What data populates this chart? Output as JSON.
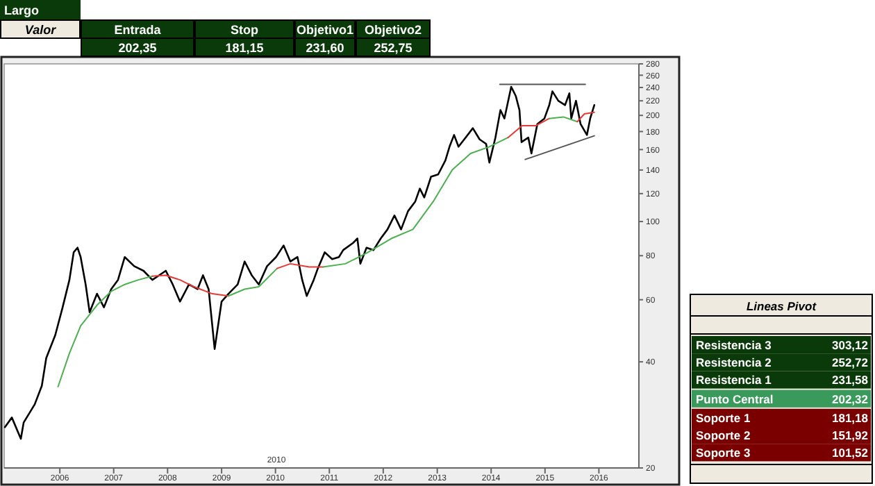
{
  "chart_data": [
    {
      "type": "line",
      "log": "y",
      "grid": false,
      "marker": "none",
      "line_style": "solid",
      "xlim": [
        "2004-12-20",
        "2016-09-28"
      ],
      "ylim": [
        20,
        280
      ],
      "xticks": [
        {
          "value": "2006-01-01",
          "label": "2006"
        },
        {
          "value": "2007-01-01",
          "label": "2007"
        },
        {
          "value": "2008-01-01",
          "label": "2008"
        },
        {
          "value": "2009-01-01",
          "label": "2009"
        },
        {
          "value": "2010-01-01",
          "label": "2010"
        },
        {
          "value": "2011-01-01",
          "label": "2011"
        },
        {
          "value": "2012-01-01",
          "label": "2012"
        },
        {
          "value": "2013-01-01",
          "label": "2013"
        },
        {
          "value": "2014-01-01",
          "label": "2014"
        },
        {
          "value": "2015-01-01",
          "label": "2015"
        },
        {
          "value": "2016-01-01",
          "label": "2016"
        }
      ],
      "yticks": [
        20,
        40,
        60,
        80,
        100,
        120,
        140,
        160,
        180,
        200,
        220,
        240,
        260,
        280
      ],
      "annotations": [
        "2010"
      ],
      "series": [
        {
          "color": "#000000",
          "x": [
            "2004-12-25",
            "2005-02-10",
            "2005-04-12",
            "2005-05-01",
            "2005-07-15",
            "2005-09-01",
            "2005-10-01",
            "2005-12-01",
            "2006-01-20",
            "2006-03-07",
            "2006-04-05",
            "2006-05-01",
            "2006-05-22",
            "2006-06-25",
            "2006-07-22",
            "2006-09-10",
            "2006-10-27",
            "2006-12-15",
            "2007-01-30",
            "2007-03-17",
            "2007-05-20",
            "2007-07-22",
            "2007-09-20",
            "2007-11-05",
            "2007-12-20",
            "2008-02-05",
            "2008-03-25",
            "2008-05-25",
            "2008-07-22",
            "2008-08-28",
            "2008-10-05",
            "2008-11-15",
            "2009-01-01",
            "2009-02-17",
            "2009-04-20",
            "2009-06-06",
            "2009-07-24",
            "2009-09-10",
            "2009-11-05",
            "2010-01-05",
            "2010-02-25",
            "2010-04-12",
            "2010-05-30",
            "2010-07-01",
            "2010-08-01",
            "2010-09-17",
            "2010-10-15",
            "2010-12-01",
            "2011-01-20",
            "2011-03-07",
            "2011-04-05",
            "2011-06-10",
            "2011-07-10",
            "2011-07-30",
            "2011-09-10",
            "2011-10-27",
            "2011-12-15",
            "2012-01-30",
            "2012-03-17",
            "2012-05-01",
            "2012-06-17",
            "2012-08-05",
            "2012-09-05",
            "2012-10-05",
            "2012-11-20",
            "2013-01-07",
            "2013-02-25",
            "2013-03-25",
            "2013-04-25",
            "2013-05-25",
            "2013-07-12",
            "2013-08-30",
            "2013-10-15",
            "2013-11-28",
            "2013-12-20",
            "2014-01-30",
            "2014-03-05",
            "2014-04-01",
            "2014-05-17",
            "2014-06-17",
            "2014-07-12",
            "2014-07-26",
            "2014-09-10",
            "2014-10-01",
            "2014-11-10",
            "2014-12-28",
            "2015-01-30",
            "2015-02-20",
            "2015-04-01",
            "2015-05-17",
            "2015-06-15",
            "2015-06-28",
            "2015-07-30",
            "2015-08-30",
            "2015-10-12",
            "2015-11-03",
            "2015-12-01"
          ],
          "values": [
            26.1,
            27.8,
            24.2,
            26.9,
            30.3,
            34.2,
            41.0,
            47.6,
            57.1,
            68.3,
            81.8,
            84.3,
            79.3,
            66.3,
            55.3,
            62.4,
            57.1,
            64.3,
            68.3,
            79.3,
            74.7,
            72.5,
            68.3,
            70.4,
            72.5,
            66.3,
            59.3,
            66.3,
            64.3,
            70.4,
            64.3,
            43.5,
            59.3,
            62.4,
            66.3,
            77.0,
            70.4,
            66.3,
            74.7,
            79.3,
            85.5,
            77.0,
            79.3,
            68.3,
            61.5,
            68.3,
            73.6,
            81.8,
            78.2,
            79.3,
            83.0,
            86.9,
            89.5,
            75.9,
            84.3,
            83.0,
            89.5,
            95,
            104,
            95,
            107,
            114,
            124,
            117,
            134,
            136,
            149,
            163,
            176,
            163,
            173,
            184,
            171,
            166,
            147,
            173,
            207,
            196,
            241,
            227,
            207,
            168,
            173,
            156,
            189,
            196,
            214,
            234,
            220,
            214,
            231,
            196,
            220,
            189,
            176,
            196,
            214
          ]
        },
        {
          "color": "#4caf50",
          "x": [
            "2005-12-20",
            "2006-03-07",
            "2006-05-22",
            "2006-09-10",
            "2006-12-15",
            "2007-03-17",
            "2007-06-17",
            "2007-09-20"
          ],
          "values": [
            34,
            42.3,
            50.6,
            57.9,
            63.4,
            66.3,
            68.3,
            70.0
          ]
        },
        {
          "color": "#e53935",
          "x": [
            "2007-09-20",
            "2007-12-20",
            "2008-03-25",
            "2008-06-28",
            "2008-10-30",
            "2009-02-17"
          ],
          "values": [
            70.0,
            70.4,
            68.3,
            65.3,
            62.4,
            61.5
          ]
        },
        {
          "color": "#4caf50",
          "x": [
            "2009-02-17",
            "2009-06-06",
            "2009-09-10",
            "2010-01-12"
          ],
          "values": [
            61.5,
            64.3,
            65.3,
            73.6
          ]
        },
        {
          "color": "#e53935",
          "x": [
            "2010-01-12",
            "2010-04-12",
            "2010-08-17",
            "2010-11-20"
          ],
          "values": [
            73.6,
            75.9,
            74.3,
            74.3
          ]
        },
        {
          "color": "#4caf50",
          "x": [
            "2010-11-20",
            "2011-04-20",
            "2011-09-20",
            "2012-02-25",
            "2012-07-20",
            "2012-12-05",
            "2013-04-12",
            "2013-08-15",
            "2013-12-20",
            "2014-04-25"
          ],
          "values": [
            74.3,
            75.9,
            81.8,
            89.5,
            95,
            114,
            140,
            156,
            163,
            173
          ]
        },
        {
          "color": "#e53935",
          "x": [
            "2014-04-25",
            "2014-07-30",
            "2014-10-30",
            "2015-01-30"
          ],
          "values": [
            173,
            187,
            187,
            196
          ]
        },
        {
          "color": "#4caf50",
          "x": [
            "2015-01-30",
            "2015-05-05",
            "2015-08-08"
          ],
          "values": [
            196,
            198,
            192
          ]
        },
        {
          "color": "#e53935",
          "x": [
            "2015-08-08",
            "2015-09-25",
            "2015-12-01"
          ],
          "values": [
            192,
            202,
            204
          ]
        },
        {
          "color": "#555555",
          "x": [
            "2014-03-01",
            "2015-10-01"
          ],
          "values": [
            245,
            245
          ]
        },
        {
          "color": "#555555",
          "x": [
            "2014-08-20",
            "2015-12-01"
          ],
          "values": [
            150,
            175
          ]
        }
      ]
    },
    {
      "type": "other",
      "title": "Largo",
      "annotations": [
        "Valor"
      ],
      "categories": [
        "Entrada",
        "Stop",
        "Objetivo1",
        "Objetivo2"
      ],
      "value_labels": [
        "202,35",
        "181,15",
        "231,60",
        "252,75"
      ]
    },
    {
      "type": "other",
      "title": "Lineas Pivot",
      "categories": [
        "Resistencia 3",
        "Resistencia 2",
        "Resistencia 1",
        "Punto Central",
        "Soporte 1",
        "Soporte 2",
        "Soporte 3"
      ],
      "value_labels": [
        "303,12",
        "252,72",
        "231,58",
        "202,32",
        "181,18",
        "151,92",
        "101,52"
      ],
      "colors": [
        "#0a3a0a",
        "#0a3a0a",
        "#0a3a0a",
        "#3a9a5c",
        "#7a0000",
        "#7a0000",
        "#7a0000"
      ]
    }
  ]
}
